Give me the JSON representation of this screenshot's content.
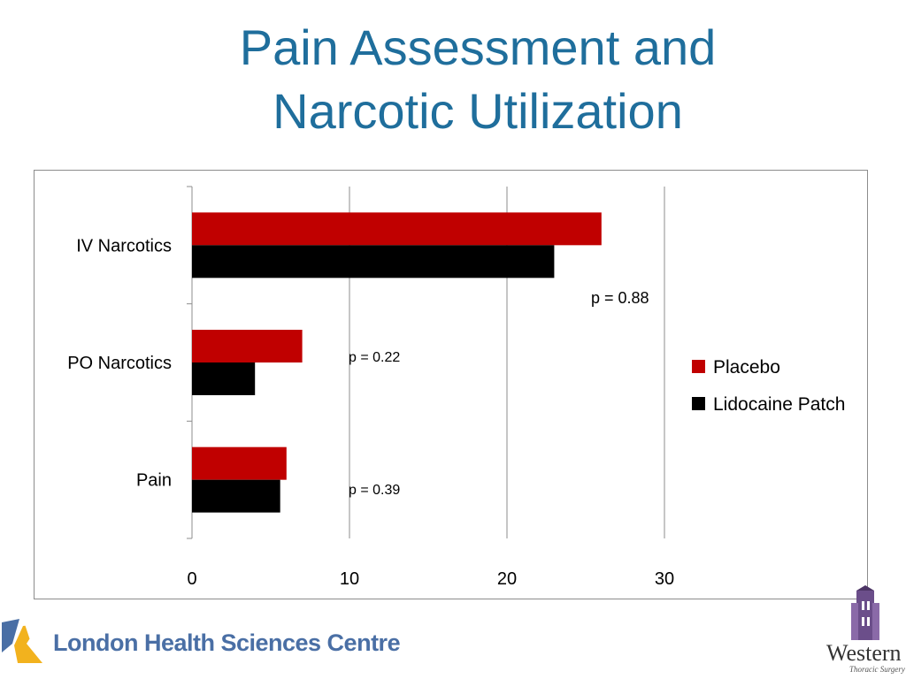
{
  "slide": {
    "title_line1": "Pain Assessment and",
    "title_line2": "Narcotic Utilization"
  },
  "chart_data": {
    "type": "bar",
    "orientation": "horizontal",
    "categories": [
      "IV Narcotics",
      "PO Narcotics",
      "Pain"
    ],
    "series": [
      {
        "name": "Placebo",
        "values": [
          26,
          7,
          6
        ],
        "color": "#c00000"
      },
      {
        "name": "Lidocaine Patch",
        "values": [
          23,
          4,
          5.6
        ],
        "color": "#000000"
      }
    ],
    "xlim": [
      0,
      30
    ],
    "x_ticks": [
      "0",
      "10",
      "20",
      "30"
    ],
    "grid": true,
    "legend": "right",
    "annotations": [
      "p = 0.88",
      "p = 0.22",
      "p = 0.39"
    ]
  },
  "logos": {
    "left_text": "London Health Sciences Centre",
    "right_name": "Western",
    "right_sub": "Thoracic Surgery"
  }
}
